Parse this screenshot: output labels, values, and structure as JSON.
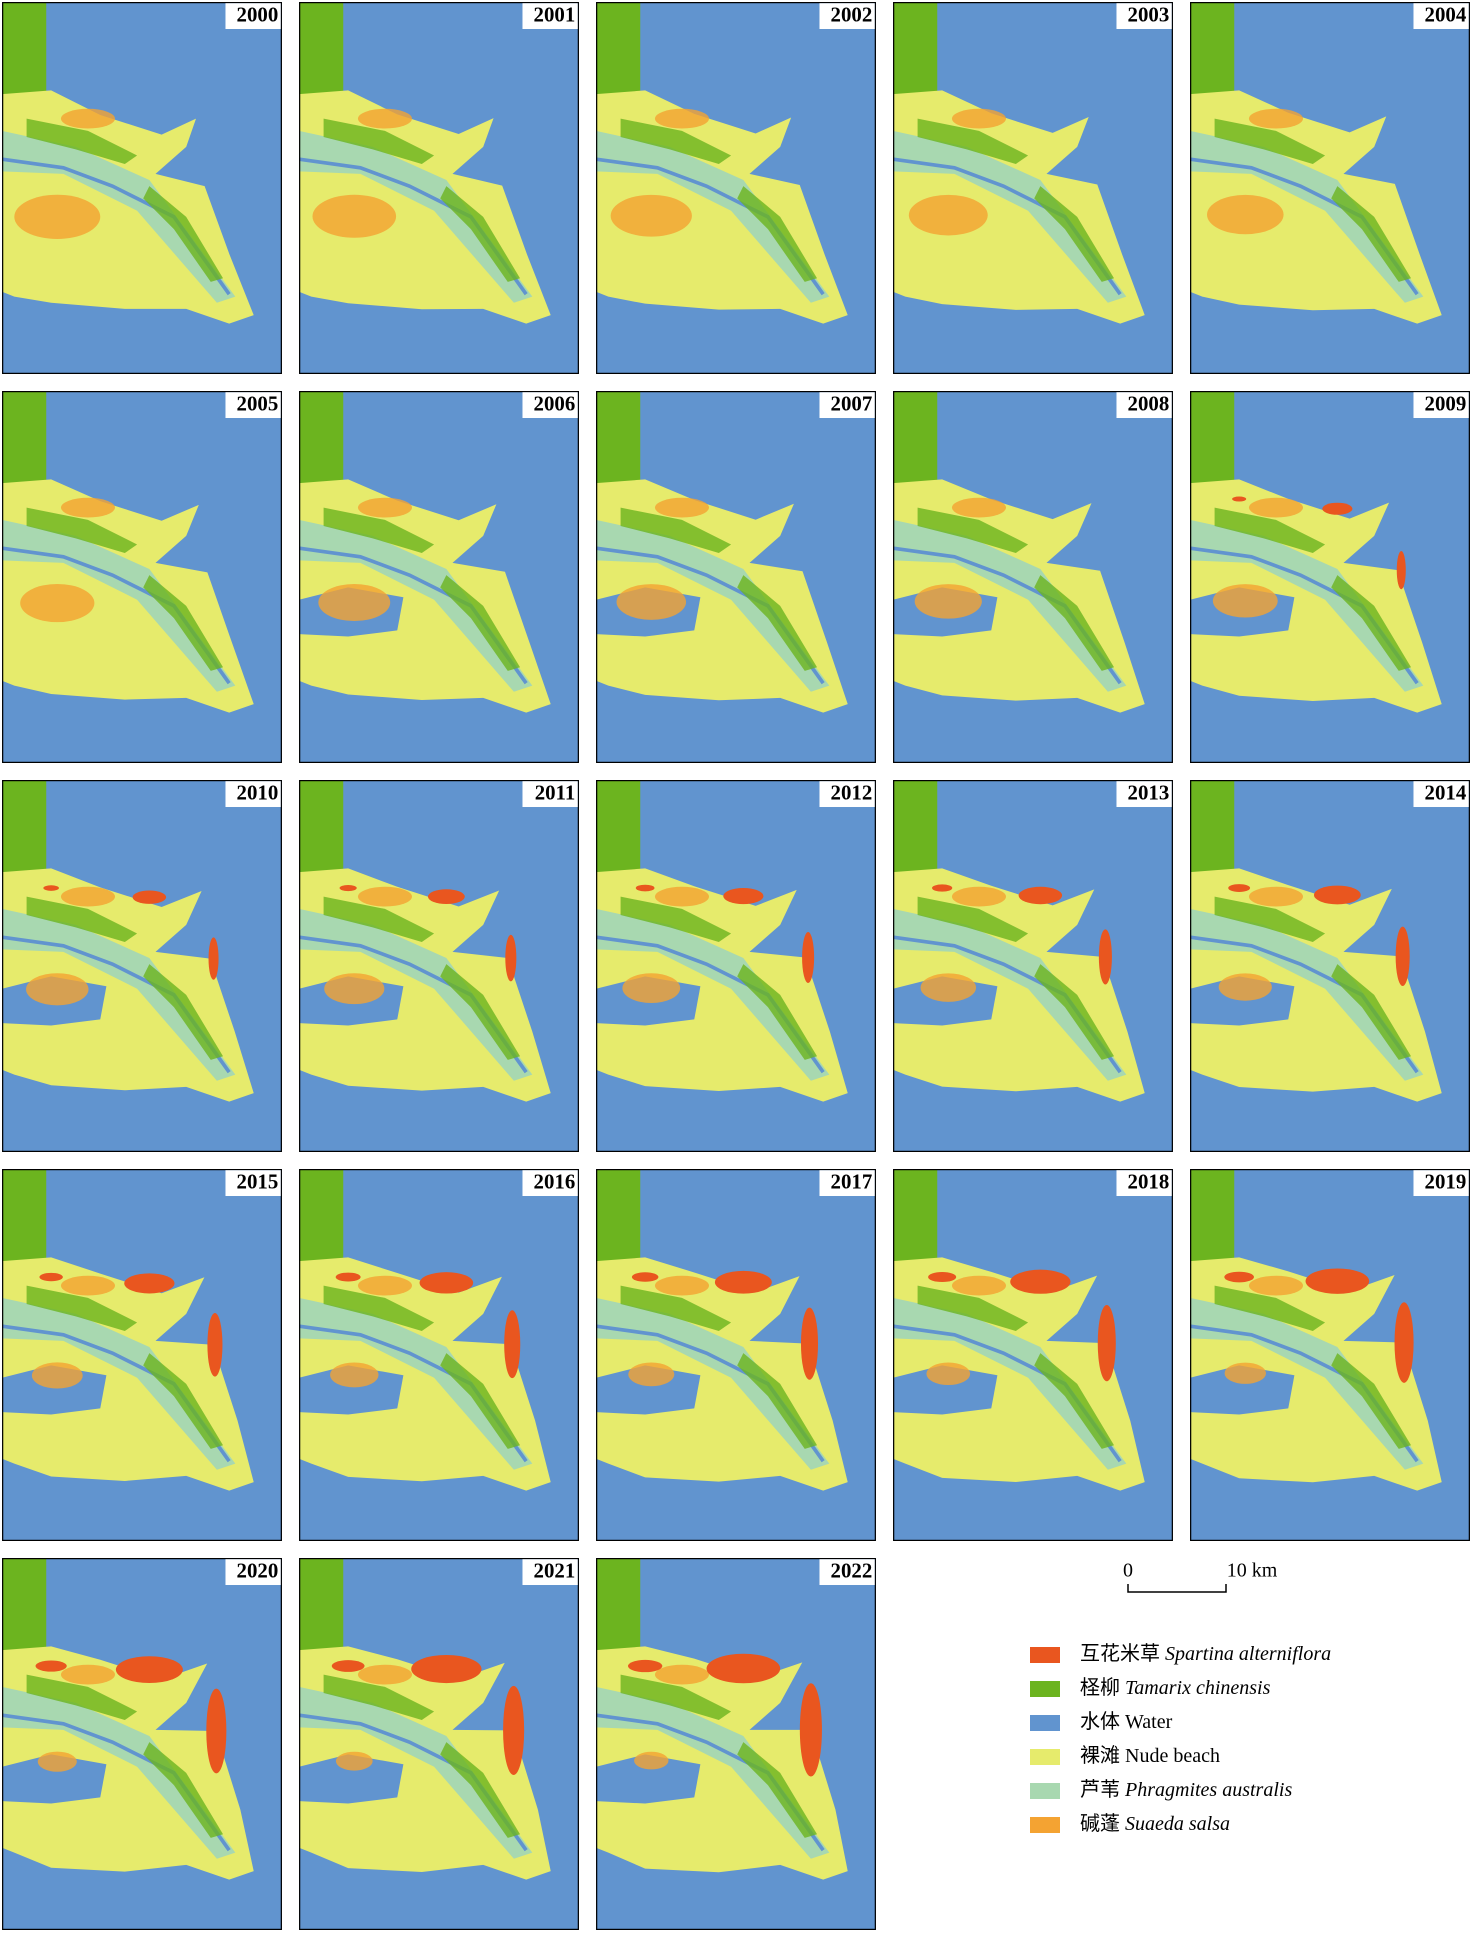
{
  "panels": [
    {
      "year": "2000"
    },
    {
      "year": "2001"
    },
    {
      "year": "2002"
    },
    {
      "year": "2003"
    },
    {
      "year": "2004"
    },
    {
      "year": "2005"
    },
    {
      "year": "2006"
    },
    {
      "year": "2007"
    },
    {
      "year": "2008"
    },
    {
      "year": "2009"
    },
    {
      "year": "2010"
    },
    {
      "year": "2011"
    },
    {
      "year": "2012"
    },
    {
      "year": "2013"
    },
    {
      "year": "2014"
    },
    {
      "year": "2015"
    },
    {
      "year": "2016"
    },
    {
      "year": "2017"
    },
    {
      "year": "2018"
    },
    {
      "year": "2019"
    },
    {
      "year": "2020"
    },
    {
      "year": "2021"
    },
    {
      "year": "2022"
    }
  ],
  "scale_bar": {
    "start": "0",
    "end": "10 km"
  },
  "legend": [
    {
      "zh": "互花米草",
      "en": "Spartina alterniflora",
      "italic": true,
      "color": "#e9561f"
    },
    {
      "zh": "柽柳",
      "en": "Tamarix chinensis",
      "italic": true,
      "color": "#6cb41f"
    },
    {
      "zh": "水体",
      "en": "Water",
      "italic": false,
      "color": "#6194cf"
    },
    {
      "zh": "裸滩",
      "en": "Nude beach",
      "italic": false,
      "color": "#e6eb6c"
    },
    {
      "zh": "芦苇",
      "en": "Phragmites australis",
      "italic": true,
      "color": "#a8d8b0"
    },
    {
      "zh": "碱蓬",
      "en": "Suaeda salsa",
      "italic": true,
      "color": "#f4a332"
    }
  ]
}
